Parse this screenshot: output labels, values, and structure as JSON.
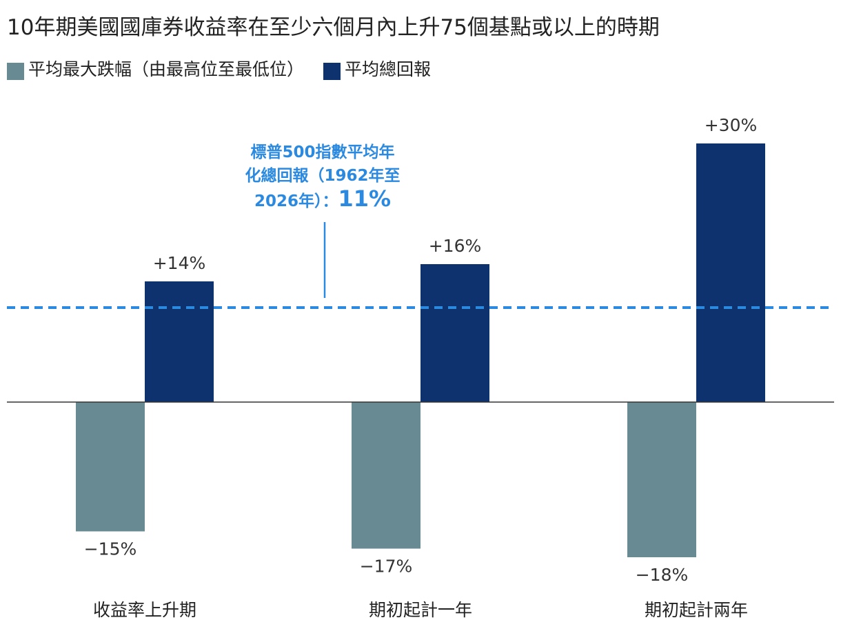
{
  "chart_data": {
    "type": "bar",
    "title": "10年期美國國庫券收益率在至少六個月內上升75個基點或以上的時期",
    "categories": [
      "收益率上升期",
      "期初起計一年",
      "期初起計兩年"
    ],
    "series": [
      {
        "name": "平均最大跌幅（由最高位至最低位）",
        "values": [
          -15,
          -17,
          -18
        ],
        "labels": [
          "−15%",
          "−17%",
          "−18%"
        ],
        "color": "#688a93"
      },
      {
        "name": "平均總回報",
        "values": [
          14,
          16,
          30
        ],
        "labels": [
          "+14%",
          "+16%",
          "+30%"
        ],
        "color": "#0d326d"
      }
    ],
    "reference_line": {
      "value": 11,
      "style": "dashed",
      "color": "#2b8ae0",
      "annotation_lines": [
        "標普500指數平均年",
        "化總回報（1962年至",
        "2026年）："
      ],
      "annotation_value": "11%"
    },
    "ylim": [
      -21,
      35
    ],
    "grid": false,
    "legend_position": "top-left"
  }
}
